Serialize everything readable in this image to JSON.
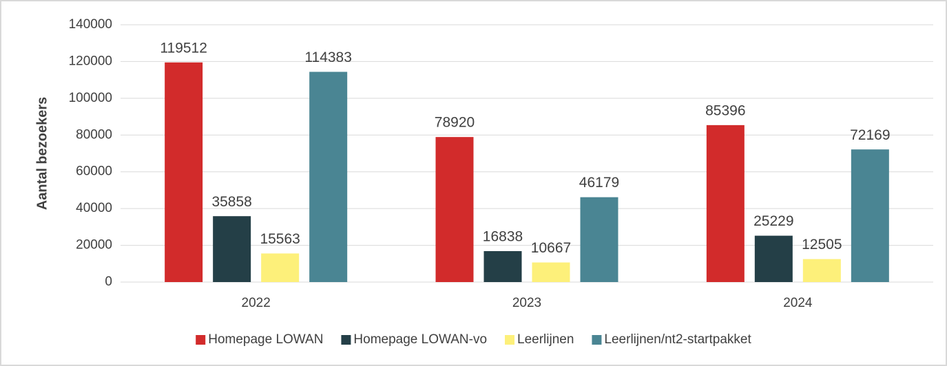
{
  "chart_data": {
    "type": "bar",
    "y_label": "Aantal bezoekers",
    "categories": [
      "2022",
      "2023",
      "2024"
    ],
    "series": [
      {
        "name": "Homepage LOWAN",
        "color": "#d22b2b",
        "values": [
          119512,
          78920,
          85396
        ]
      },
      {
        "name": "Homepage LOWAN-vo",
        "color": "#243f47",
        "values": [
          35858,
          16838,
          25229
        ]
      },
      {
        "name": "Leerlijnen",
        "color": "#fdf07a",
        "values": [
          15563,
          10667,
          12505
        ]
      },
      {
        "name": "Leerlijnen/nt2-startpakket",
        "color": "#4a8593",
        "values": [
          114383,
          46179,
          72169
        ]
      }
    ],
    "ylim": [
      0,
      140000
    ],
    "yticks": [
      0,
      20000,
      40000,
      60000,
      80000,
      100000,
      120000,
      140000
    ],
    "grid": true,
    "legend": "bottom"
  }
}
